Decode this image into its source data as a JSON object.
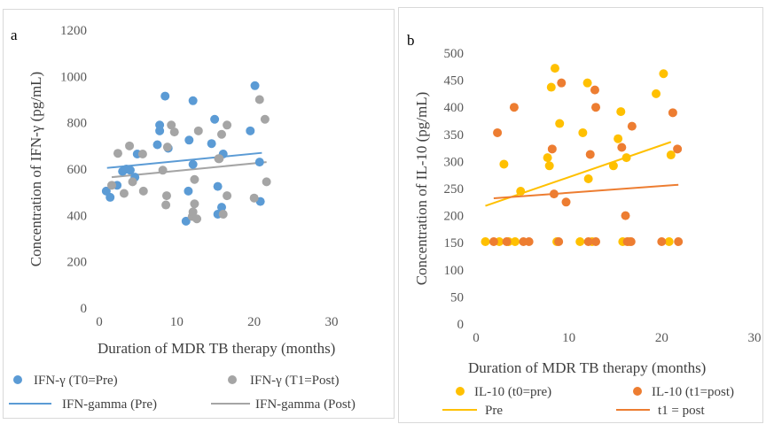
{
  "chart_data": [
    {
      "type": "scatter",
      "panel_label": "a",
      "xlabel": "Duration of MDR TB therapy (months)",
      "ylabel": "Concentration of IFN-γ (pg/mL)",
      "xlim": [
        0,
        30
      ],
      "ylim": [
        0,
        1200
      ],
      "xticks": [
        0,
        10,
        20,
        30
      ],
      "yticks": [
        0,
        200,
        400,
        600,
        800,
        1000,
        1200
      ],
      "grid": false,
      "legend_position": "bottom",
      "series": [
        {
          "name": "IFN-γ (T0=Pre)",
          "kind": "points",
          "color": "#5b9bd5",
          "points": [
            [
              0.9,
              505
            ],
            [
              1.4,
              478
            ],
            [
              2.3,
              530
            ],
            [
              3.0,
              590
            ],
            [
              3.5,
              600
            ],
            [
              4.0,
              595
            ],
            [
              4.6,
              565
            ],
            [
              4.9,
              665
            ],
            [
              7.5,
              705
            ],
            [
              7.8,
              765
            ],
            [
              7.8,
              790
            ],
            [
              8.5,
              915
            ],
            [
              8.9,
              690
            ],
            [
              11.2,
              375
            ],
            [
              11.5,
              505
            ],
            [
              11.6,
              725
            ],
            [
              12.1,
              620
            ],
            [
              12.1,
              895
            ],
            [
              14.5,
              710
            ],
            [
              14.9,
              815
            ],
            [
              15.3,
              525
            ],
            [
              15.3,
              405
            ],
            [
              15.8,
              435
            ],
            [
              16.0,
              665
            ],
            [
              19.5,
              765
            ],
            [
              20.1,
              960
            ],
            [
              20.7,
              630
            ],
            [
              20.8,
              460
            ]
          ]
        },
        {
          "name": "IFN-γ (T1=Post)",
          "kind": "points",
          "color": "#a5a5a5",
          "points": [
            [
              1.6,
              530
            ],
            [
              2.4,
              668
            ],
            [
              3.2,
              495
            ],
            [
              3.9,
              700
            ],
            [
              4.3,
              545
            ],
            [
              5.6,
              665
            ],
            [
              5.7,
              505
            ],
            [
              8.2,
              595
            ],
            [
              8.6,
              445
            ],
            [
              8.7,
              485
            ],
            [
              8.8,
              695
            ],
            [
              9.3,
              790
            ],
            [
              9.7,
              760
            ],
            [
              12.0,
              395
            ],
            [
              12.1,
              415
            ],
            [
              12.3,
              555
            ],
            [
              12.3,
              450
            ],
            [
              12.6,
              385
            ],
            [
              12.8,
              765
            ],
            [
              15.4,
              645
            ],
            [
              15.5,
              645
            ],
            [
              15.8,
              750
            ],
            [
              16.0,
              405
            ],
            [
              16.5,
              790
            ],
            [
              16.5,
              485
            ],
            [
              20.0,
              475
            ],
            [
              20.7,
              900
            ],
            [
              21.4,
              815
            ],
            [
              21.6,
              545
            ]
          ]
        },
        {
          "name": "IFN-gamma (Pre)",
          "kind": "trendline",
          "color": "#5b9bd5",
          "points": [
            [
              1,
              605
            ],
            [
              21,
              670
            ]
          ]
        },
        {
          "name": "IFN-gamma (Post)",
          "kind": "trendline",
          "color": "#a5a5a5",
          "points": [
            [
              1.6,
              565
            ],
            [
              21.6,
              630
            ]
          ]
        }
      ]
    },
    {
      "type": "scatter",
      "panel_label": "b",
      "xlabel": "Duration of MDR TB therapy (months)",
      "ylabel": "Concentration of IL-10 (pg/mL)",
      "xlim": [
        0,
        30
      ],
      "ylim": [
        0,
        500
      ],
      "xticks": [
        0,
        10,
        20,
        30
      ],
      "yticks": [
        0,
        50,
        100,
        150,
        200,
        250,
        300,
        350,
        400,
        450,
        500
      ],
      "grid": false,
      "legend_position": "bottom",
      "series": [
        {
          "name": "IL-10 (t0=pre)",
          "kind": "points",
          "color": "#ffc000",
          "points": [
            [
              1.0,
              152
            ],
            [
              2.5,
              152
            ],
            [
              3.0,
              295
            ],
            [
              3.5,
              152
            ],
            [
              4.2,
              152
            ],
            [
              4.8,
              245
            ],
            [
              7.7,
              307
            ],
            [
              7.9,
              292
            ],
            [
              8.1,
              437
            ],
            [
              8.5,
              472
            ],
            [
              8.7,
              152
            ],
            [
              9.0,
              370
            ],
            [
              11.2,
              152
            ],
            [
              11.5,
              353
            ],
            [
              12.0,
              445
            ],
            [
              12.1,
              268
            ],
            [
              12.5,
              152
            ],
            [
              14.8,
              292
            ],
            [
              15.3,
              342
            ],
            [
              15.6,
              392
            ],
            [
              15.8,
              152
            ],
            [
              16.2,
              307
            ],
            [
              16.5,
              152
            ],
            [
              19.4,
              425
            ],
            [
              20.2,
              462
            ],
            [
              20.8,
              152
            ],
            [
              21.0,
              312
            ]
          ]
        },
        {
          "name": "IL-10 (t1=post)",
          "kind": "points",
          "color": "#ed7d31",
          "points": [
            [
              1.9,
              152
            ],
            [
              2.3,
              353
            ],
            [
              3.3,
              152
            ],
            [
              4.1,
              400
            ],
            [
              5.1,
              152
            ],
            [
              5.7,
              152
            ],
            [
              8.2,
              323
            ],
            [
              8.4,
              240
            ],
            [
              8.9,
              152
            ],
            [
              9.2,
              445
            ],
            [
              9.7,
              225
            ],
            [
              12.1,
              152
            ],
            [
              12.3,
              313
            ],
            [
              12.8,
              432
            ],
            [
              12.9,
              400
            ],
            [
              12.9,
              152
            ],
            [
              15.7,
              326
            ],
            [
              16.1,
              200
            ],
            [
              16.3,
              152
            ],
            [
              16.7,
              152
            ],
            [
              16.8,
              365
            ],
            [
              20.0,
              152
            ],
            [
              21.2,
              390
            ],
            [
              21.7,
              323
            ],
            [
              21.8,
              152
            ]
          ]
        },
        {
          "name": "Pre",
          "kind": "trendline",
          "color": "#ffc000",
          "points": [
            [
              1,
              218
            ],
            [
              21,
              336
            ]
          ]
        },
        {
          "name": "t1 = post",
          "kind": "trendline",
          "color": "#ed7d31",
          "points": [
            [
              1.9,
              232
            ],
            [
              21.8,
              257
            ]
          ]
        }
      ]
    }
  ]
}
